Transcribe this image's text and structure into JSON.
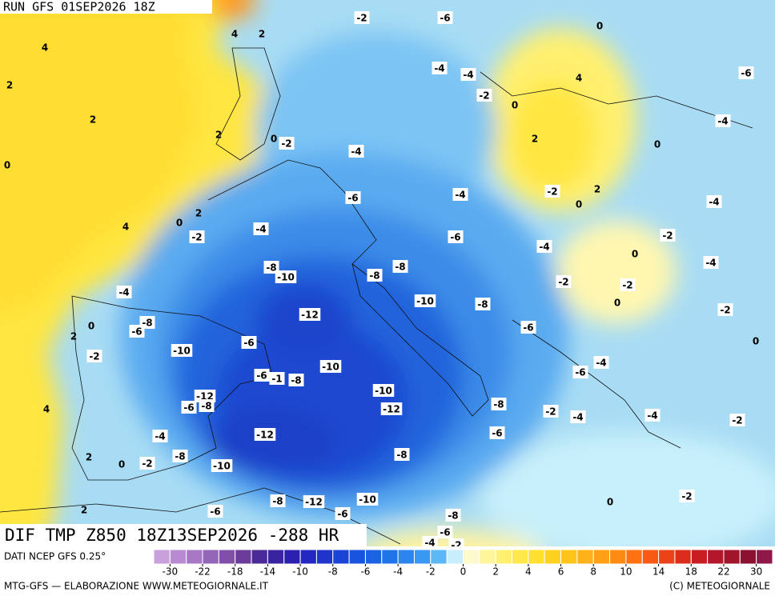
{
  "header": {
    "run": "RUN GFS 01SEP2026 18Z"
  },
  "map": {
    "contour_labels": [
      -2,
      -6,
      4,
      2,
      4,
      0,
      -4,
      -4,
      -6,
      2,
      4,
      -2,
      0,
      2,
      -4,
      2,
      0,
      -2,
      2,
      0,
      -4,
      0,
      -6,
      -4,
      -2,
      2,
      0,
      -4,
      2,
      0,
      4,
      -4,
      -2,
      -6,
      -2,
      -4,
      0,
      -4,
      -8,
      -10,
      -8,
      -8,
      -2,
      -2,
      -4,
      -10,
      0,
      -8,
      -12,
      -2,
      0,
      -8,
      -6,
      2,
      -6,
      -6,
      -10,
      0,
      -2,
      -4,
      -10,
      -6,
      -6,
      -1,
      -8,
      -10,
      -12,
      -6,
      -8,
      -8,
      -2,
      -12,
      4,
      -4,
      -4,
      -2,
      -4,
      -12,
      -6,
      2,
      -8,
      -8,
      0,
      -2,
      -10,
      -2,
      -8,
      -12,
      -10,
      0,
      -6,
      -6,
      -8,
      2,
      -6,
      -4,
      -2
    ]
  },
  "footer": {
    "title": "DIF TMP Z850 18Z13SEP2026 -288 HR"
  },
  "legend": {
    "source": "DATI NCEP GFS 0.25°",
    "colors": [
      "#c8a0dc",
      "#b88ad0",
      "#a878c4",
      "#9466b8",
      "#8050a8",
      "#6c3c9a",
      "#4a2a96",
      "#3a23a0",
      "#2c20b0",
      "#2428c0",
      "#1e34cc",
      "#1a44d6",
      "#1854de",
      "#1a64e4",
      "#2074ea",
      "#2a86ee",
      "#3898f2",
      "#5ab8f6",
      "#c8eefc",
      "#fffacc",
      "#fff59a",
      "#fff070",
      "#ffe84a",
      "#ffe030",
      "#ffd21e",
      "#ffc41a",
      "#ffb218",
      "#ffa016",
      "#ff8a14",
      "#ff7212",
      "#f85a14",
      "#ec4218",
      "#dc2c1c",
      "#c81e22",
      "#b41828",
      "#a0142c",
      "#8c1030",
      "#901848"
    ],
    "ticks": [
      -30,
      -22,
      -18,
      -14,
      -10,
      -8,
      -6,
      -4,
      -2,
      0,
      2,
      4,
      6,
      8,
      10,
      14,
      18,
      22,
      30
    ]
  },
  "credits": {
    "left": "MTG-GFS — ELABORAZIONE WWW.METEOGIORNALE.IT",
    "right": "(C) METEOGIORNALE"
  }
}
